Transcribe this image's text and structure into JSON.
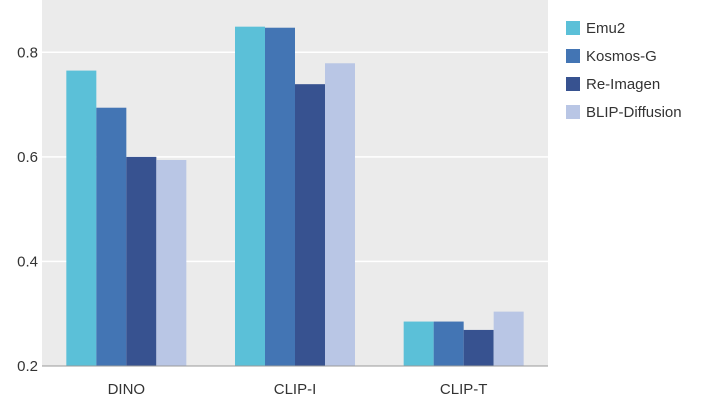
{
  "chart_data": {
    "type": "bar",
    "title": "",
    "xlabel": "",
    "ylabel": "",
    "categories": [
      "DINO",
      "CLIP-I",
      "CLIP-T"
    ],
    "series": [
      {
        "name": "Emu2",
        "color": "#5bc0d8",
        "values": [
          0.765,
          0.849,
          0.285
        ]
      },
      {
        "name": "Kosmos-G",
        "color": "#4375b4",
        "values": [
          0.694,
          0.847,
          0.285
        ]
      },
      {
        "name": "Re-Imagen",
        "color": "#375290",
        "values": [
          0.6,
          0.739,
          0.269
        ]
      },
      {
        "name": "BLIP-Diffusion",
        "color": "#b9c6e5",
        "values": [
          0.594,
          0.779,
          0.304
        ]
      }
    ],
    "ylim": [
      0.2,
      0.9
    ],
    "yticks": [
      0.2,
      0.4,
      0.6,
      0.8
    ],
    "ytick_labels": [
      "0.2",
      "0.4",
      "0.6",
      "0.8"
    ],
    "grid": true,
    "plot_background": "#ebebeb",
    "grid_color": "#ffffff",
    "legend_position": "right"
  }
}
